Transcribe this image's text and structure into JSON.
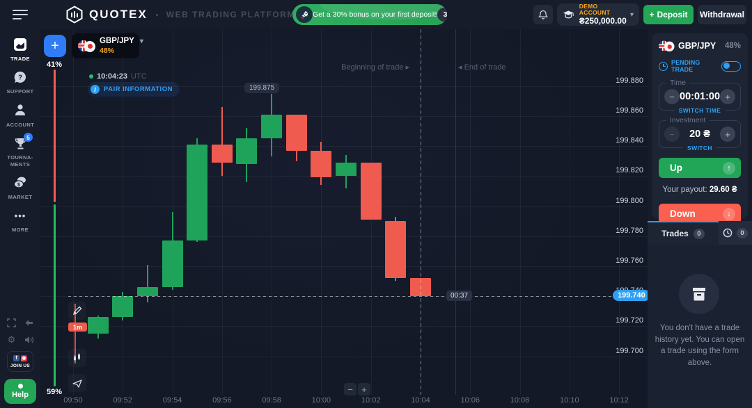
{
  "colors": {
    "green": "#21a556",
    "red": "#fa6050",
    "candle_up": "#1fa35a",
    "candle_down": "#ef5b4e",
    "accent_blue": "#2f9ff2",
    "orange": "#f5a623"
  },
  "glyphs": {
    "plus": "+",
    "minus": "−",
    "chevron_down": "▾",
    "arrow_up": "↑",
    "arrow_down": "↓",
    "arrow_right_small": "▸",
    "arrow_left_small": "◂",
    "more_dots": "•••",
    "gear": "⚙"
  },
  "topbar": {
    "logo": "QUOTEX",
    "subtitle": "WEB TRADING PLATFORM",
    "banner": {
      "text": "Get a 30% bonus on your first deposit!",
      "badge": "30%"
    },
    "account": {
      "type": "DEMO ACCOUNT",
      "balance": "₴250,000.00"
    },
    "deposit_label": "Deposit",
    "withdrawal_label": "Withdrawal"
  },
  "sidebar": {
    "items": [
      {
        "label": "TRADE"
      },
      {
        "label": "SUPPORT"
      },
      {
        "label": "ACCOUNT"
      },
      {
        "label": "TOURNA-MENTS",
        "badge": "5"
      },
      {
        "label": "MARKET"
      },
      {
        "label": "MORE"
      }
    ],
    "join_us": "JOIN US",
    "help": "Help"
  },
  "chart": {
    "pair": "GBP/JPY",
    "payout_pct": "48%",
    "clock": "10:04:23",
    "timezone": "UTC",
    "pair_info": "PAIR INFORMATION",
    "timeframe": "1m"
  },
  "chart_data": {
    "type": "candlestick",
    "pair": "GBP/JPY",
    "timeframe": "1m",
    "x_ticks": [
      "09:50",
      "09:52",
      "09:54",
      "09:56",
      "09:58",
      "10:00",
      "10:02",
      "10:04",
      "10:06",
      "10:08",
      "10:10",
      "10:12"
    ],
    "y_ticks": [
      199.88,
      199.86,
      199.84,
      199.82,
      199.8,
      199.78,
      199.76,
      199.74,
      199.72,
      199.7
    ],
    "y_range": [
      199.69,
      199.905
    ],
    "grid": true,
    "candles": [
      {
        "time": "09:51",
        "open": 199.715,
        "high": 199.727,
        "low": 199.712,
        "close": 199.726
      },
      {
        "time": "09:52",
        "open": 199.726,
        "high": 199.743,
        "low": 199.724,
        "close": 199.74
      },
      {
        "time": "09:53",
        "open": 199.74,
        "high": 199.761,
        "low": 199.736,
        "close": 199.746
      },
      {
        "time": "09:54",
        "open": 199.746,
        "high": 199.796,
        "low": 199.744,
        "close": 199.777
      },
      {
        "time": "09:55",
        "open": 199.777,
        "high": 199.845,
        "low": 199.776,
        "close": 199.841
      },
      {
        "time": "09:56",
        "open": 199.841,
        "high": 199.866,
        "low": 199.82,
        "close": 199.829
      },
      {
        "time": "09:57",
        "open": 199.828,
        "high": 199.852,
        "low": 199.816,
        "close": 199.845
      },
      {
        "time": "09:58",
        "open": 199.845,
        "high": 199.875,
        "low": 199.833,
        "close": 199.861
      },
      {
        "time": "09:59",
        "open": 199.861,
        "high": 199.861,
        "low": 199.83,
        "close": 199.837
      },
      {
        "time": "10:00",
        "open": 199.837,
        "high": 199.843,
        "low": 199.814,
        "close": 199.819
      },
      {
        "time": "10:01",
        "open": 199.82,
        "high": 199.834,
        "low": 199.812,
        "close": 199.829
      },
      {
        "time": "10:02",
        "open": 199.829,
        "high": 199.829,
        "low": 199.791,
        "close": 199.791
      },
      {
        "time": "10:03",
        "open": 199.79,
        "high": 199.793,
        "low": 199.75,
        "close": 199.752
      },
      {
        "time": "10:04",
        "open": 199.752,
        "high": 199.752,
        "low": 199.74,
        "close": 199.74
      }
    ],
    "current_price": 199.74,
    "current_price_label": "199.740",
    "countdown": "00:37",
    "high_tooltip": "199.875",
    "markers": {
      "begin_time": "10:04",
      "begin_label": "Beginning of trade",
      "end_label": "End of trade"
    },
    "sentiment": {
      "sell_pct": "41%",
      "buy_pct": "59%"
    }
  },
  "trade_panel": {
    "pair": "GBP/JPY",
    "payout_pct": "48%",
    "pending_label": "PENDING TRADE",
    "time_field": {
      "legend": "Time",
      "value": "00:01:00",
      "switch_label": "SWITCH TIME"
    },
    "investment_field": {
      "legend": "Investment",
      "value": "20 ₴",
      "switch_label": "SWITCH"
    },
    "up_label": "Up",
    "down_label": "Down",
    "payout_label": "Your payout:",
    "payout_value": "29.60 ₴",
    "tabs": {
      "trades": "Trades",
      "trades_count": "0",
      "history_count": "0"
    },
    "empty_text": "You don't have a trade history yet. You can open a trade using the form above."
  }
}
